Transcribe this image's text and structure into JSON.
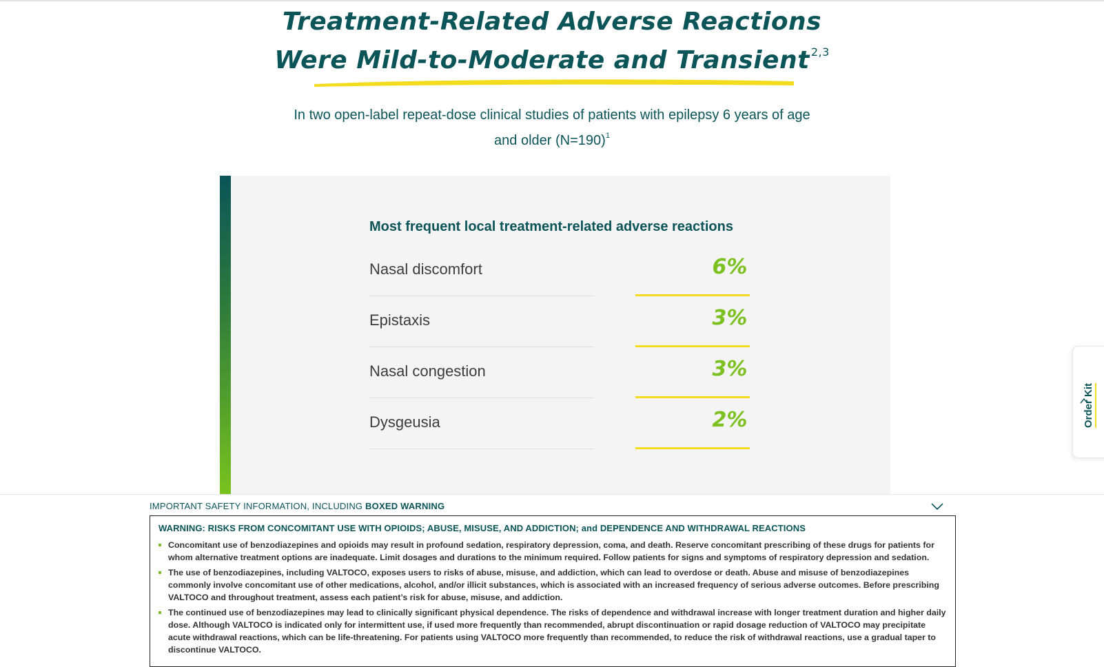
{
  "heading": {
    "line1": "Treatment-Related Adverse Reactions",
    "line2": "Were Mild-to-Moderate and Transient",
    "superscript": "2,3"
  },
  "intro": {
    "text": "In two open-label repeat-dose clinical studies of patients with epilepsy 6 years of age and older (N=190)",
    "superscript": "1"
  },
  "table": {
    "title": "Most frequent local treatment-related adverse reactions",
    "rows": [
      {
        "label": "Nasal discomfort",
        "value": "6%"
      },
      {
        "label": "Epistaxis",
        "value": "3%"
      },
      {
        "label": "Nasal congestion",
        "value": "3%"
      },
      {
        "label": "Dysgeusia",
        "value": "2%"
      }
    ]
  },
  "isi": {
    "header_prefix": "IMPORTANT SAFETY INFORMATION, INCLUDING ",
    "header_bold": "BOXED WARNING",
    "warning_title": "WARNING: RISKS FROM CONCOMITANT USE WITH OPIOIDS; ABUSE, MISUSE, AND ADDICTION; and DEPENDENCE AND WITHDRAWAL REACTIONS",
    "bullets": [
      "Concomitant use of benzodiazepines and opioids may result in profound sedation, respiratory depression, coma, and death. Reserve concomitant prescribing of these drugs for patients for whom alternative treatment options are inadequate. Limit dosages and durations to the minimum required. Follow patients for signs and symptoms of respiratory depression and sedation.",
      "The use of benzodiazepines, including VALTOCO, exposes users to risks of abuse, misuse, and addiction, which can lead to overdose or death. Abuse and misuse of benzodiazepines commonly involve concomitant use of other medications, alcohol, and/or illicit substances, which is associated with an increased frequency of serious adverse outcomes. Before prescribing VALTOCO and throughout treatment, assess each patient’s risk for abuse, misuse, and addiction.",
      "The continued use of benzodiazepines may lead to clinically significant physical dependence. The risks of dependence and withdrawal increase with longer treatment duration and higher daily dose. Although VALTOCO is indicated only for intermittent use, if used more frequently than recommended, abrupt discontinuation or rapid dosage reduction of VALTOCO may precipitate acute withdrawal reactions, which can be life-threatening. For patients using VALTOCO more frequently than recommended, to reduce the risk of withdrawal reactions, use a gradual taper to discontinue VALTOCO."
    ]
  },
  "order_tab": {
    "label": "Order Kit"
  },
  "colors": {
    "teal": "#0b5458",
    "green": "#7cc121",
    "yellow": "#f2dc1d",
    "card_bg": "#f4f4f4"
  },
  "icons": {
    "isi_toggle": "chevron-down-icon",
    "order_tab": "chevron-up-icon"
  }
}
